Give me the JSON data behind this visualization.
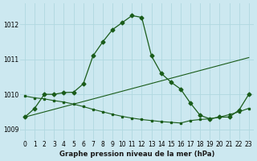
{
  "title": "Graphe pression niveau de la mer (hPa)",
  "background_color": "#cce8f0",
  "grid_color": "#b0d8e0",
  "line_color": "#1a5c1a",
  "xlim": [
    -0.5,
    23.5
  ],
  "ylim": [
    1008.7,
    1012.6
  ],
  "yticks": [
    1009,
    1010,
    1011,
    1012
  ],
  "xticks": [
    0,
    1,
    2,
    3,
    4,
    5,
    6,
    7,
    8,
    9,
    10,
    11,
    12,
    13,
    14,
    15,
    16,
    17,
    18,
    19,
    20,
    21,
    22,
    23
  ],
  "line1_x": [
    0,
    1,
    2,
    3,
    4,
    5,
    6,
    7,
    8,
    9,
    10,
    11,
    12,
    13,
    14,
    15,
    16,
    17,
    18,
    19,
    20,
    21,
    22,
    23
  ],
  "line1_y": [
    1009.35,
    1009.6,
    1010.0,
    1010.0,
    1010.05,
    1010.06,
    1010.3,
    1011.1,
    1011.5,
    1011.85,
    1012.05,
    1012.25,
    1012.2,
    1011.1,
    1010.6,
    1010.35,
    1010.15,
    1009.75,
    1009.4,
    1009.3,
    1009.35,
    1009.35,
    1009.55,
    1010.0
  ],
  "line2_x": [
    0,
    23
  ],
  "line2_y": [
    1009.35,
    1011.05
  ],
  "line3_x": [
    0,
    1,
    2,
    3,
    4,
    5,
    6,
    7,
    8,
    9,
    10,
    11,
    12,
    13,
    14,
    15,
    16,
    17,
    18,
    19,
    20,
    21,
    22,
    23
  ],
  "line3_y": [
    1009.95,
    1009.9,
    1009.87,
    1009.82,
    1009.78,
    1009.72,
    1009.65,
    1009.57,
    1009.5,
    1009.43,
    1009.37,
    1009.32,
    1009.28,
    1009.25,
    1009.22,
    1009.2,
    1009.18,
    1009.25,
    1009.28,
    1009.3,
    1009.35,
    1009.42,
    1009.5,
    1009.6
  ],
  "marker_size": 2.5,
  "tick_fontsize": 5.5,
  "label_fontsize": 6.2
}
